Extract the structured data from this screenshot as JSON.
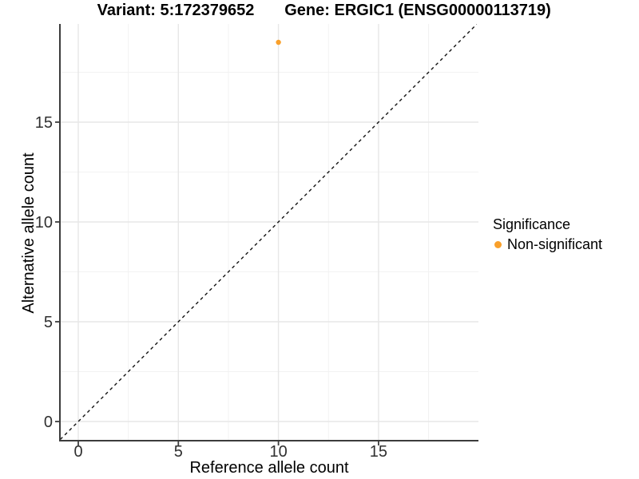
{
  "titles": {
    "variant": "Variant: 5:172379652",
    "gene": "Gene: ERGIC1 (ENSG00000113719)"
  },
  "legend": {
    "title": "Significance",
    "items": [
      {
        "label": "Non-significant",
        "color": "#F9A02B"
      }
    ]
  },
  "chart_data": {
    "type": "scatter",
    "title": "Variant: 5:172379652   Gene: ERGIC1 (ENSG00000113719)",
    "xlabel": "Reference allele count",
    "ylabel": "Alternative allele count",
    "xlim": [
      -0.95,
      19.95
    ],
    "ylim": [
      -0.95,
      19.95
    ],
    "x_ticks": [
      0,
      5,
      10,
      15
    ],
    "y_ticks": [
      0,
      5,
      10,
      15
    ],
    "x_minor_ticks": [
      2.5,
      7.5,
      12.5,
      17.5
    ],
    "y_minor_ticks": [
      2.5,
      7.5,
      12.5,
      17.5
    ],
    "grid": true,
    "legend_position": "right",
    "series": [
      {
        "name": "Non-significant",
        "color": "#F9A02B",
        "points": [
          [
            10,
            19
          ]
        ]
      }
    ],
    "reference_line": {
      "kind": "y=x",
      "style": "dashed",
      "from": [
        -0.9,
        -0.9
      ],
      "to": [
        19.9,
        19.9
      ]
    },
    "colors": {
      "grid_major": "#e7e7e7",
      "grid_minor": "#f2f2f2",
      "axis_line": "#3c3c3c",
      "tick_text": "#303030",
      "ref_line": "#141414"
    }
  }
}
